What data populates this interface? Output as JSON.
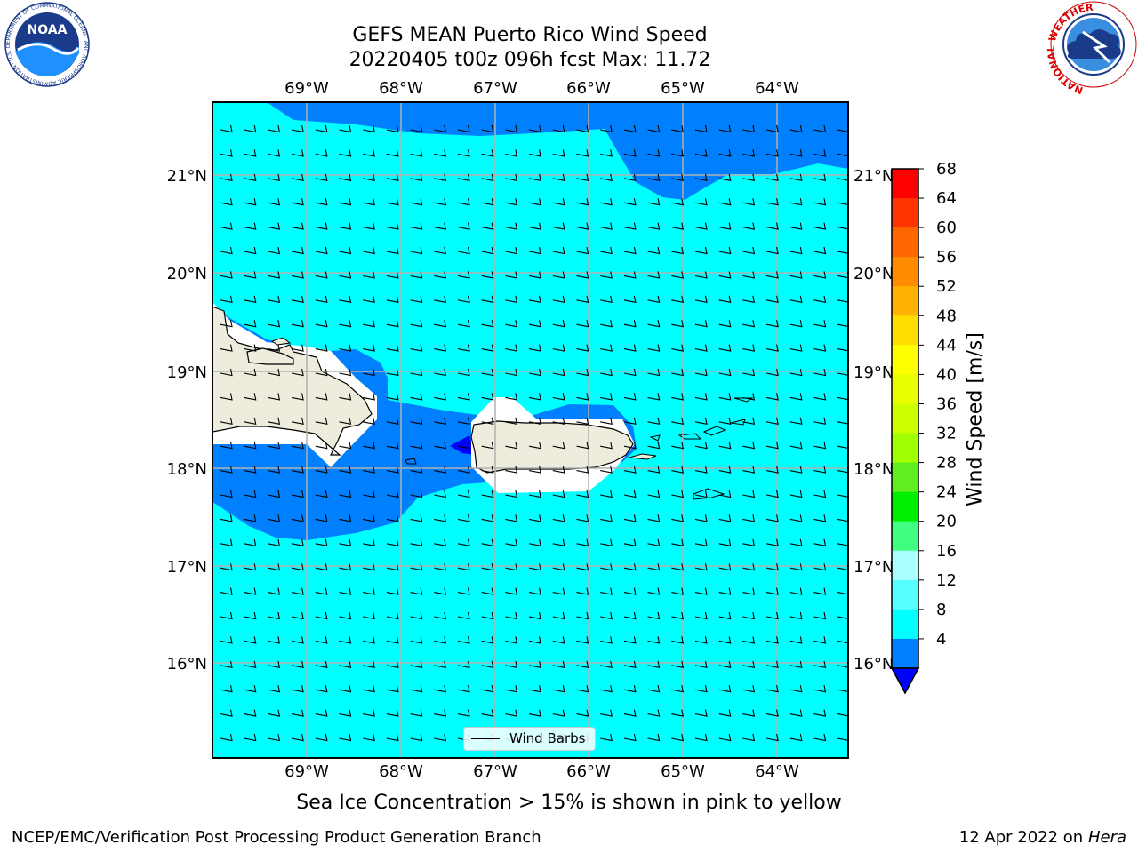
{
  "title": {
    "line1": "GEFS MEAN Puerto Rico Wind Speed",
    "line2": "20220405 t00z 096h fcst   Max: 11.72"
  },
  "map": {
    "lon_ticks": [
      "69°W",
      "68°W",
      "67°W",
      "66°W",
      "65°W",
      "64°W"
    ],
    "lat_ticks": [
      "21°N",
      "20°N",
      "19°N",
      "18°N",
      "17°N",
      "16°N"
    ],
    "extent": {
      "lon_min": -70.0,
      "lon_max": -63.25,
      "lat_min": 15.0,
      "lat_max": 21.75
    },
    "fill_colors": {
      "ocean_8_12": "#00ffff",
      "band_4_8": "#0080ff",
      "min_below_4": "#0000ff",
      "land": "#eeecdc",
      "masked": "#ffffff"
    },
    "legend_label": "Wind Barbs"
  },
  "colorbar": {
    "label": "Wind Speed [m/s]",
    "ticks": [
      "68",
      "64",
      "60",
      "56",
      "52",
      "48",
      "44",
      "40",
      "36",
      "32",
      "28",
      "24",
      "20",
      "16",
      "12",
      "8",
      "4"
    ],
    "colors": [
      "#ff0000",
      "#ff3300",
      "#ff6600",
      "#ff8c00",
      "#ffb300",
      "#ffdd00",
      "#ffff00",
      "#e8ff00",
      "#ccff00",
      "#a0ff00",
      "#60ee20",
      "#00ee00",
      "#40ff80",
      "#aaffff",
      "#55ffff",
      "#00ffff",
      "#0080ff"
    ],
    "under_color": "#0000ff"
  },
  "subtitle": "Sea Ice Concentration > 15% is shown in pink to yellow",
  "footer": {
    "left": "NCEP/EMC/Verification Post Processing Product Generation Branch",
    "right_prefix": "12 Apr 2022 on ",
    "right_italic": "Hera"
  },
  "logos": {
    "noaa": "NOAA",
    "noaa_ring": "NATIONAL OCEANIC AND ATMOSPHERIC ADMINISTRATION · U.S. DEPARTMENT OF COMMERCE",
    "nws_ring": "NATIONAL WEATHER SERVICE"
  }
}
